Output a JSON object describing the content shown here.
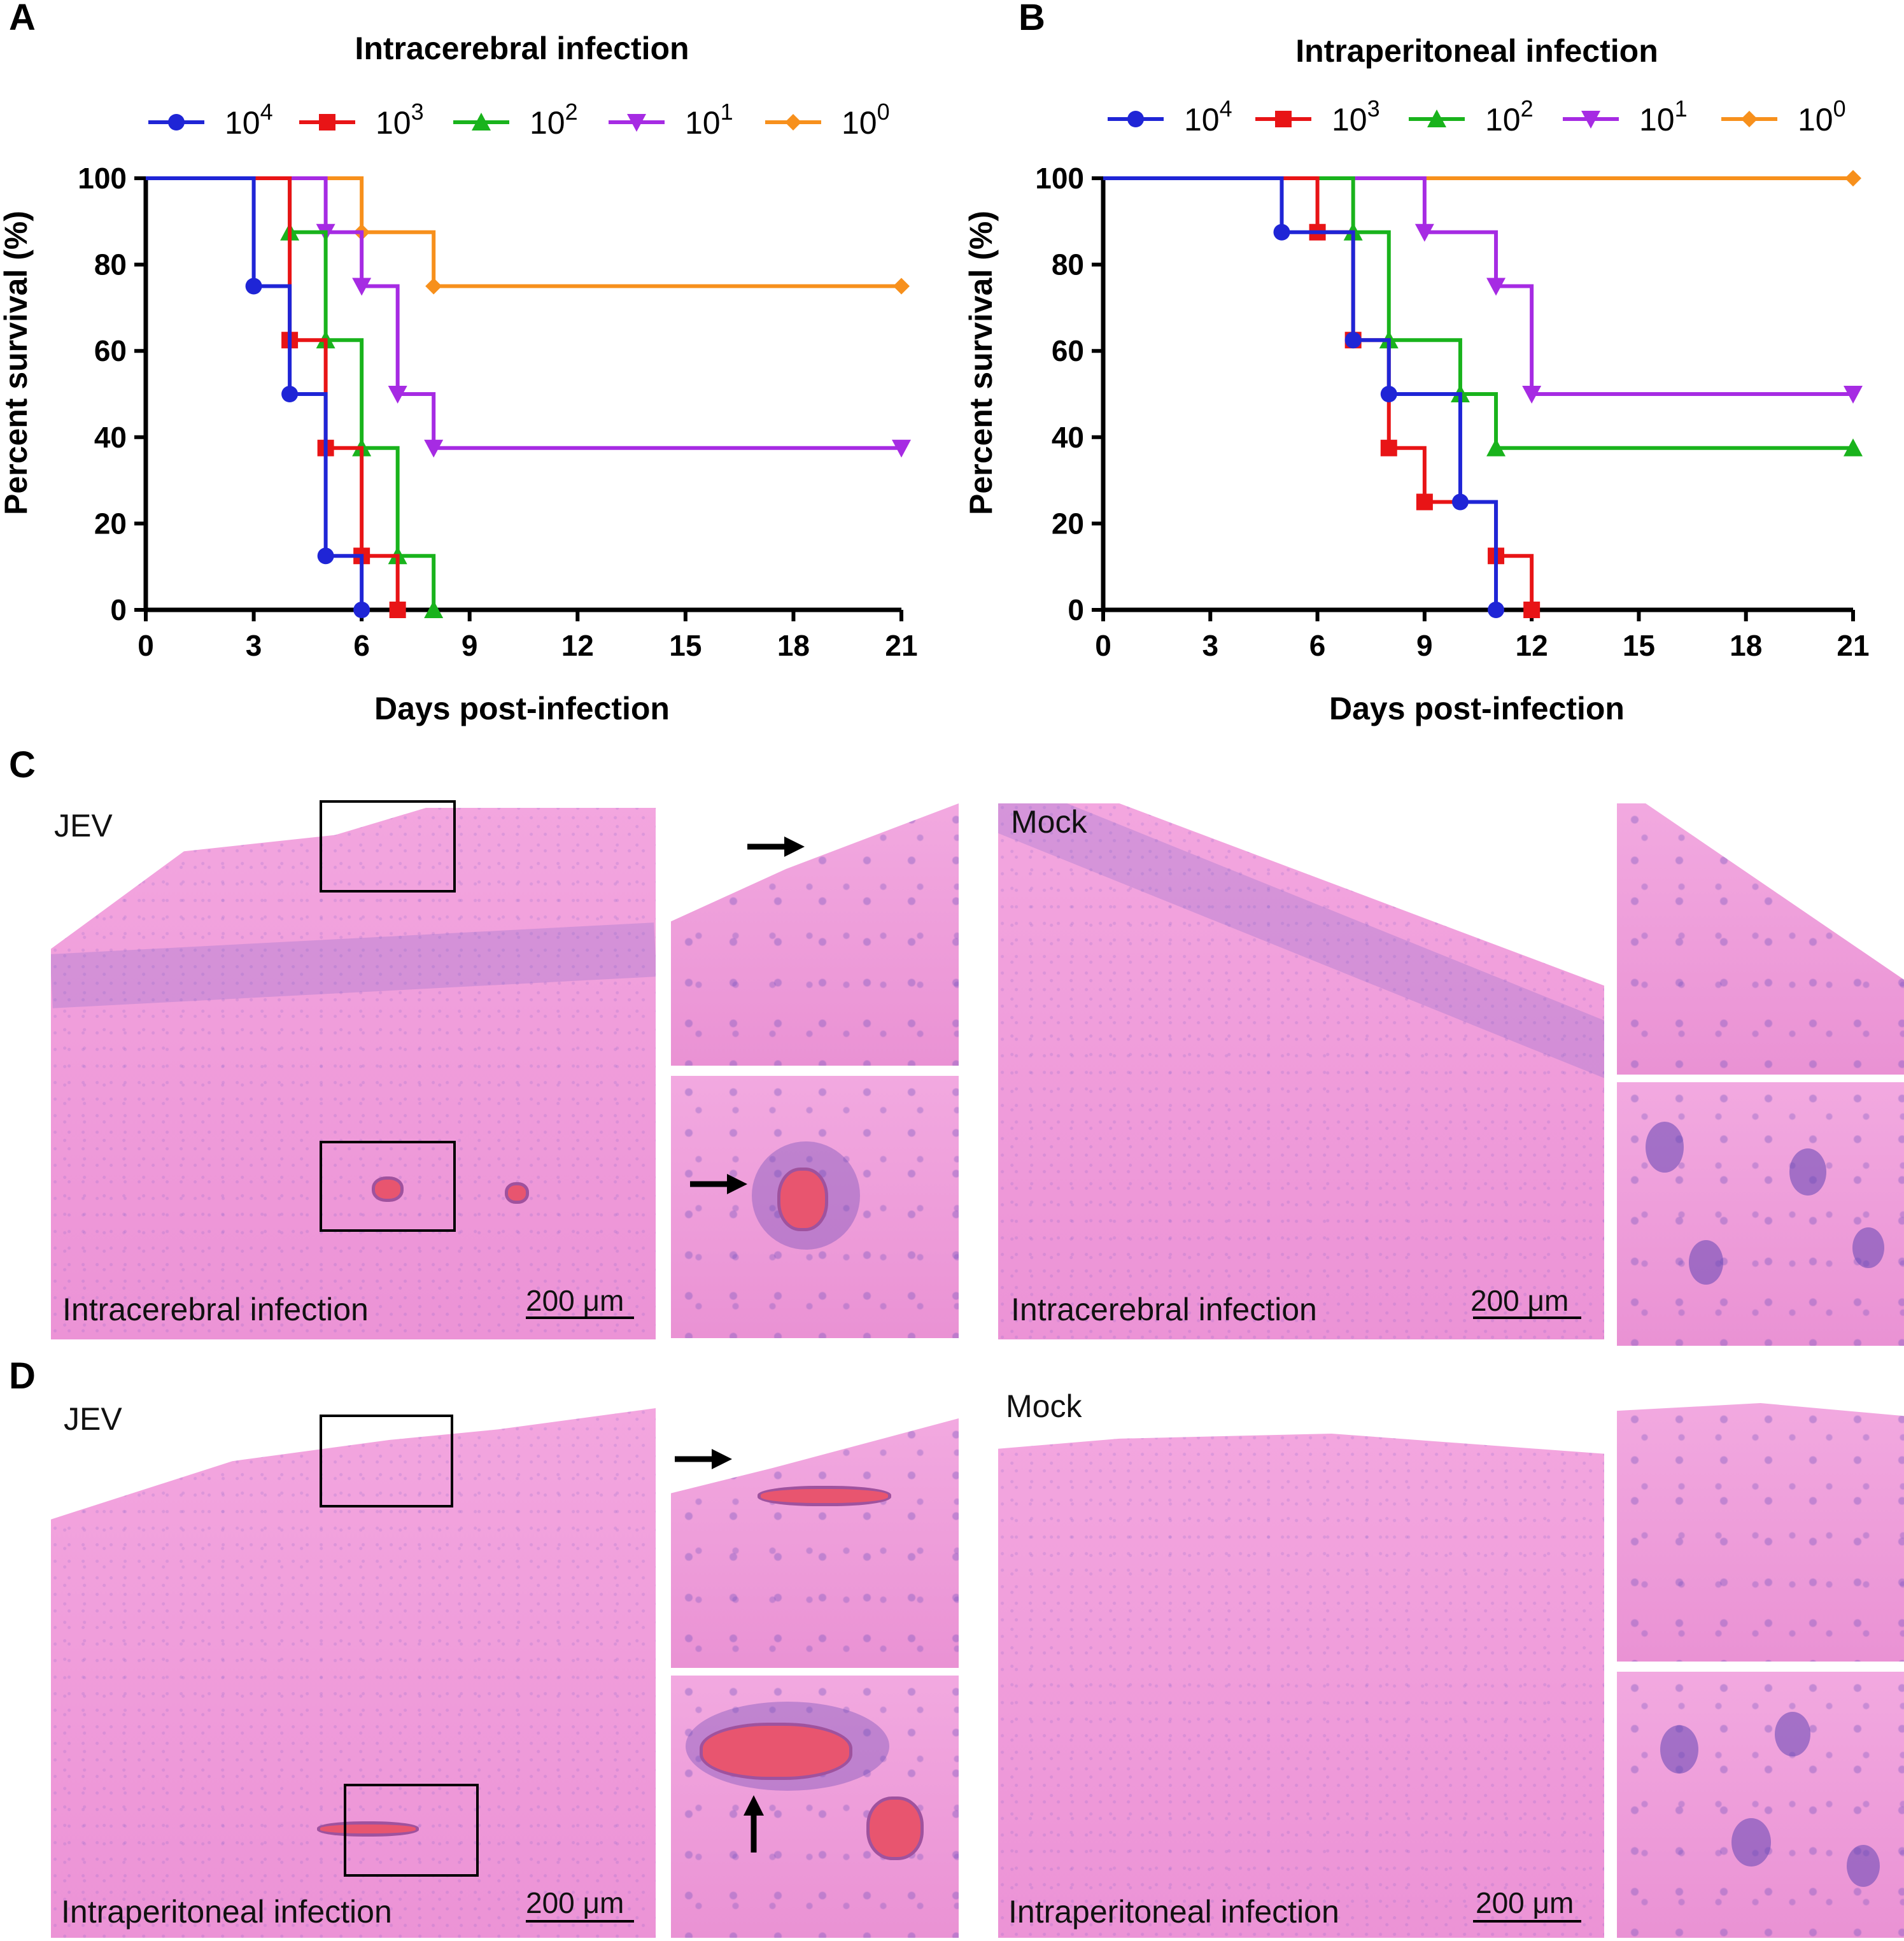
{
  "panels": {
    "A": "A",
    "B": "B",
    "C": "C",
    "D": "D"
  },
  "legend": {
    "colors": [
      "#1f25d6",
      "#e81416",
      "#19b31c",
      "#a62be3",
      "#f7901c"
    ],
    "markers": [
      "circle",
      "square",
      "triangle-up",
      "triangle-down",
      "diamond"
    ],
    "base": "10",
    "exponents": [
      "4",
      "3",
      "2",
      "1",
      "0"
    ]
  },
  "chart_data": [
    {
      "type": "line",
      "subtype": "kaplan-meier step",
      "title": "Intracerebral infection",
      "xlabel": "Days post-infection",
      "ylabel": "Percent survival (%)",
      "xlim": [
        0,
        21
      ],
      "ylim": [
        0,
        100
      ],
      "xticks": [
        "0",
        "3",
        "6",
        "9",
        "12",
        "15",
        "18",
        "21"
      ],
      "yticks": [
        "0",
        "20",
        "40",
        "60",
        "80",
        "100"
      ],
      "legend_position": "top",
      "series": [
        {
          "name": "10^4",
          "points": [
            [
              0,
              100
            ],
            [
              3,
              75
            ],
            [
              4,
              50
            ],
            [
              5,
              12.5
            ],
            [
              6,
              0
            ]
          ],
          "markers": [
            [
              3,
              75
            ],
            [
              4,
              50
            ],
            [
              5,
              12.5
            ],
            [
              6,
              0
            ]
          ]
        },
        {
          "name": "10^3",
          "points": [
            [
              0,
              100
            ],
            [
              4,
              62.5
            ],
            [
              5,
              37.5
            ],
            [
              6,
              12.5
            ],
            [
              7,
              0
            ]
          ],
          "markers": [
            [
              4,
              62.5
            ],
            [
              5,
              37.5
            ],
            [
              6,
              12.5
            ],
            [
              7,
              0
            ]
          ]
        },
        {
          "name": "10^2",
          "points": [
            [
              0,
              100
            ],
            [
              4,
              87.5
            ],
            [
              5,
              62.5
            ],
            [
              6,
              37.5
            ],
            [
              7,
              12.5
            ],
            [
              8,
              0
            ]
          ],
          "markers": [
            [
              4,
              87.5
            ],
            [
              5,
              62.5
            ],
            [
              6,
              37.5
            ],
            [
              7,
              12.5
            ],
            [
              8,
              0
            ]
          ]
        },
        {
          "name": "10^1",
          "points": [
            [
              0,
              100
            ],
            [
              5,
              87.5
            ],
            [
              6,
              75
            ],
            [
              7,
              50
            ],
            [
              8,
              37.5
            ],
            [
              21,
              37.5
            ]
          ],
          "markers": [
            [
              5,
              87.5
            ],
            [
              6,
              75
            ],
            [
              7,
              50
            ],
            [
              8,
              37.5
            ],
            [
              21,
              37.5
            ]
          ]
        },
        {
          "name": "10^0",
          "points": [
            [
              0,
              100
            ],
            [
              6,
              87.5
            ],
            [
              8,
              75
            ],
            [
              21,
              75
            ]
          ],
          "markers": [
            [
              6,
              87.5
            ],
            [
              8,
              75
            ],
            [
              21,
              75
            ]
          ]
        }
      ]
    },
    {
      "type": "line",
      "subtype": "kaplan-meier step",
      "title": "Intraperitoneal infection",
      "xlabel": "Days post-infection",
      "ylabel": "Percent survival (%)",
      "xlim": [
        0,
        21
      ],
      "ylim": [
        0,
        100
      ],
      "xticks": [
        "0",
        "3",
        "6",
        "9",
        "12",
        "15",
        "18",
        "21"
      ],
      "yticks": [
        "0",
        "20",
        "40",
        "60",
        "80",
        "100"
      ],
      "legend_position": "top",
      "series": [
        {
          "name": "10^4",
          "points": [
            [
              0,
              100
            ],
            [
              5,
              87.5
            ],
            [
              7,
              62.5
            ],
            [
              8,
              50
            ],
            [
              10,
              25
            ],
            [
              11,
              0
            ]
          ],
          "markers": [
            [
              5,
              87.5
            ],
            [
              7,
              62.5
            ],
            [
              8,
              50
            ],
            [
              10,
              25
            ],
            [
              11,
              0
            ]
          ]
        },
        {
          "name": "10^3",
          "points": [
            [
              0,
              100
            ],
            [
              6,
              87.5
            ],
            [
              7,
              62.5
            ],
            [
              8,
              37.5
            ],
            [
              9,
              25
            ],
            [
              11,
              12.5
            ],
            [
              12,
              0
            ]
          ],
          "markers": [
            [
              6,
              87.5
            ],
            [
              7,
              62.5
            ],
            [
              8,
              37.5
            ],
            [
              9,
              25
            ],
            [
              11,
              12.5
            ],
            [
              12,
              0
            ]
          ]
        },
        {
          "name": "10^2",
          "points": [
            [
              0,
              100
            ],
            [
              7,
              87.5
            ],
            [
              8,
              62.5
            ],
            [
              10,
              50
            ],
            [
              11,
              37.5
            ],
            [
              21,
              37.5
            ]
          ],
          "markers": [
            [
              7,
              87.5
            ],
            [
              8,
              62.5
            ],
            [
              10,
              50
            ],
            [
              11,
              37.5
            ],
            [
              21,
              37.5
            ]
          ]
        },
        {
          "name": "10^1",
          "points": [
            [
              0,
              100
            ],
            [
              9,
              87.5
            ],
            [
              11,
              75
            ],
            [
              12,
              50
            ],
            [
              21,
              50
            ]
          ],
          "markers": [
            [
              9,
              87.5
            ],
            [
              11,
              75
            ],
            [
              12,
              50
            ],
            [
              21,
              50
            ]
          ]
        },
        {
          "name": "10^0",
          "points": [
            [
              0,
              100
            ],
            [
              21,
              100
            ]
          ],
          "markers": [
            [
              21,
              100
            ]
          ]
        }
      ]
    }
  ],
  "histology": {
    "jev": "JEV",
    "mock": "Mock",
    "intracerebral": "Intracerebral infection",
    "intraperitoneal": "Intraperitoneal infection",
    "scale": "200 μm"
  }
}
